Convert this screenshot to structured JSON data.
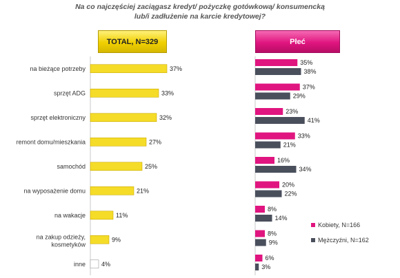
{
  "chart_data": [
    {
      "type": "bar",
      "orientation": "horizontal",
      "title_lines": [
        "Na co najczęściej zaciągasz kredyt/ pożyczkę gotówkową/ konsumencką",
        "lub/i zadłużenie na karcie kredytowej?"
      ],
      "header": "TOTAL, N=329",
      "categories": [
        [
          "na bieżące potrzeby"
        ],
        [
          "sprzęt ADG"
        ],
        [
          "sprzęt elektroniczny"
        ],
        [
          "remont domu/mieszkania"
        ],
        [
          "samochód"
        ],
        [
          "na wyposażenie domu"
        ],
        [
          "na wakacje"
        ],
        [
          "na zakup odzieży,",
          "kosmetyków"
        ],
        [
          "inne"
        ]
      ],
      "values": [
        37,
        33,
        32,
        27,
        25,
        21,
        11,
        9,
        4
      ],
      "value_labels": [
        "37%",
        "33%",
        "32%",
        "27%",
        "25%",
        "21%",
        "11%",
        "9%",
        "4%"
      ],
      "colors": {
        "bar": "#f5dc28",
        "bar_low": "#ffffff"
      }
    },
    {
      "type": "bar",
      "orientation": "horizontal",
      "header": "Płeć",
      "series": [
        {
          "name": "Kobiety, N=166",
          "color": "#e0157f",
          "values": [
            35,
            37,
            23,
            33,
            16,
            20,
            8,
            8,
            6
          ],
          "value_labels": [
            "35%",
            "37%",
            "23%",
            "33%",
            "16%",
            "20%",
            "8%",
            "8%",
            "6%"
          ]
        },
        {
          "name": "Mężczyźni, N=162",
          "color": "#4a4f5c",
          "values": [
            38,
            29,
            41,
            21,
            34,
            22,
            14,
            9,
            3
          ],
          "value_labels": [
            "38%",
            "29%",
            "41%",
            "21%",
            "34%",
            "22%",
            "14%",
            "9%",
            "3%"
          ]
        }
      ],
      "legend_position": "right"
    }
  ]
}
